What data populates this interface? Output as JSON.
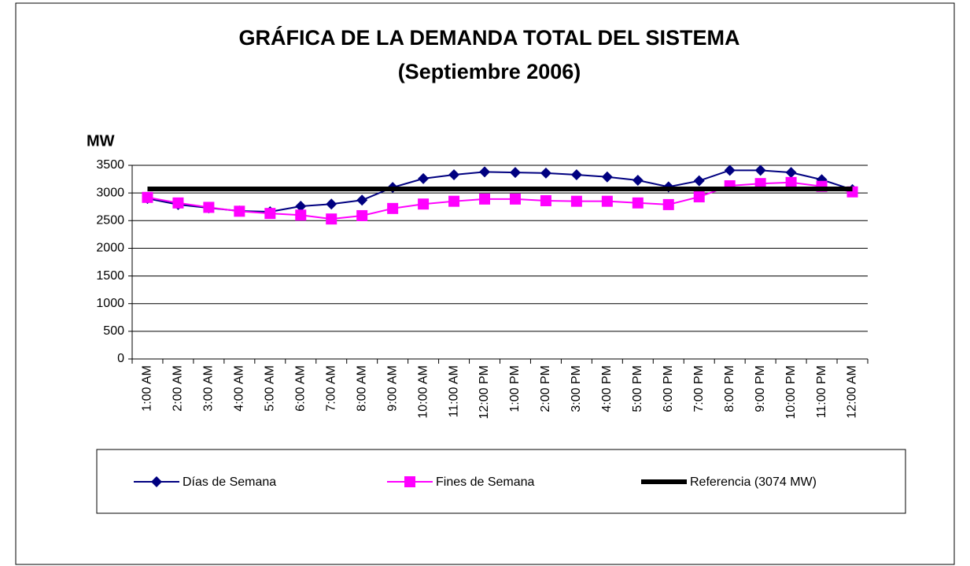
{
  "chart_data": {
    "type": "line",
    "title": "GRÁFICA DE LA DEMANDA TOTAL DEL SISTEMA",
    "subtitle": "(Septiembre 2006)",
    "y_label": "MW",
    "categories": [
      "1:00 AM",
      "2:00 AM",
      "3:00 AM",
      "4:00 AM",
      "5:00 AM",
      "6:00 AM",
      "7:00 AM",
      "8:00 AM",
      "9:00 AM",
      "10:00 AM",
      "11:00 AM",
      "12:00 PM",
      "1:00 PM",
      "2:00 PM",
      "3:00 PM",
      "4:00 PM",
      "5:00 PM",
      "6:00 PM",
      "7:00 PM",
      "8:00 PM",
      "9:00 PM",
      "10:00 PM",
      "11:00 PM",
      "12:00 AM"
    ],
    "series": [
      {
        "name": "Días de Semana",
        "color": "#000080",
        "marker": "diamond",
        "line_width": 2,
        "values": [
          2900,
          2790,
          2730,
          2675,
          2660,
          2760,
          2800,
          2870,
          3100,
          3260,
          3330,
          3380,
          3370,
          3360,
          3330,
          3290,
          3230,
          3110,
          3220,
          3410,
          3410,
          3370,
          3240,
          3060
        ]
      },
      {
        "name": "Fines de Semana",
        "color": "#ff00ff",
        "marker": "square",
        "line_width": 2,
        "values": [
          2920,
          2820,
          2740,
          2670,
          2630,
          2600,
          2530,
          2590,
          2720,
          2800,
          2850,
          2890,
          2890,
          2860,
          2850,
          2850,
          2820,
          2790,
          2930,
          3130,
          3170,
          3190,
          3120,
          3020
        ]
      },
      {
        "name": "Referencia (3074 MW)",
        "color": "#000000",
        "marker": "none",
        "line_width": 6,
        "values": [
          3074,
          3074,
          3074,
          3074,
          3074,
          3074,
          3074,
          3074,
          3074,
          3074,
          3074,
          3074,
          3074,
          3074,
          3074,
          3074,
          3074,
          3074,
          3074,
          3074,
          3074,
          3074,
          3074,
          3074
        ]
      }
    ],
    "ylim": [
      0,
      3500
    ],
    "yticks": [
      0,
      500,
      1000,
      1500,
      2000,
      2500,
      3000,
      3500
    ],
    "grid": true,
    "legend": "bottom"
  }
}
